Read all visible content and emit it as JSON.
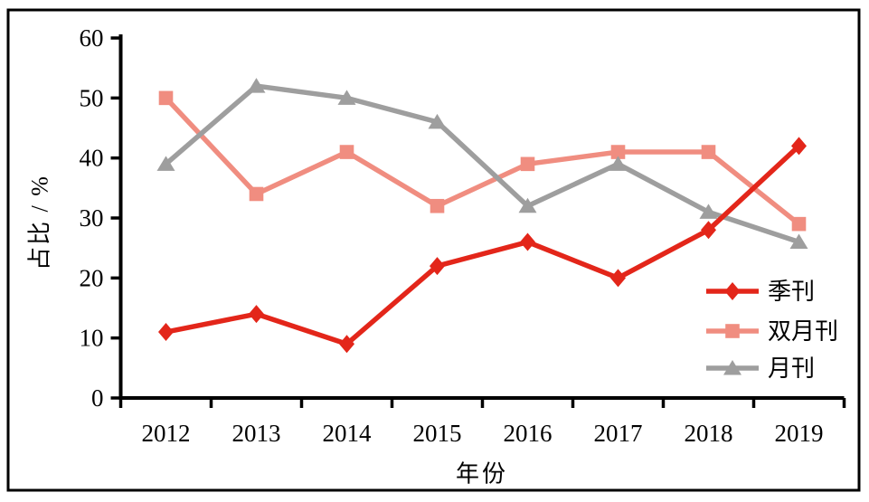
{
  "figure": {
    "background_color": "#ffffff",
    "frame_color": "#000000",
    "axis_color": "#000000"
  },
  "chart_data": {
    "type": "line",
    "title": "",
    "xlabel": "年份",
    "ylabel": "占比 / %",
    "categories": [
      "2012",
      "2013",
      "2014",
      "2015",
      "2016",
      "2017",
      "2018",
      "2019"
    ],
    "yticks": [
      0,
      10,
      20,
      30,
      40,
      50,
      60
    ],
    "ylim": [
      0,
      60
    ],
    "grid": false,
    "legend_position": "lower-right",
    "series": [
      {
        "name": "季刊",
        "slug": "quarterly",
        "marker": "diamond",
        "color": "#e3261a",
        "values": [
          11,
          14,
          9,
          22,
          26,
          20,
          28,
          42
        ]
      },
      {
        "name": "双月刊",
        "slug": "bimonthly",
        "marker": "square",
        "color": "#f08d80",
        "values": [
          50,
          34,
          41,
          32,
          39,
          41,
          41,
          29
        ]
      },
      {
        "name": "月刊",
        "slug": "monthly",
        "marker": "triangle",
        "color": "#9e9e9e",
        "values": [
          39,
          52,
          50,
          46,
          32,
          39,
          31,
          26
        ]
      }
    ]
  }
}
